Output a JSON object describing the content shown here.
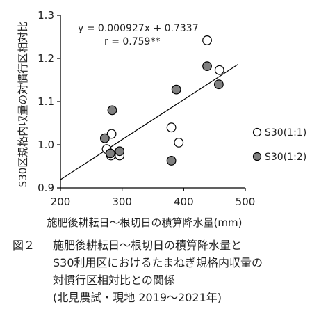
{
  "chart_data": {
    "type": "scatter",
    "xlabel": "施肥後耕耘日～根切日の積算降水量(mm)",
    "ylabel": "S30区規格内収量の対慣行区相対比",
    "xlim": [
      200,
      500
    ],
    "ylim": [
      0.9,
      1.3
    ],
    "xticks": [
      "200",
      "300",
      "400",
      "500"
    ],
    "yticks": [
      "0.9",
      "1.0",
      "1.1",
      "1.2",
      "1.3"
    ],
    "grid": false,
    "legend_position": "right",
    "series": [
      {
        "name": "S30(1:1)",
        "marker": "open-circle",
        "color": "#ffffff",
        "points": [
          [
            438,
            1.242
          ],
          [
            458,
            1.173
          ],
          [
            275,
            0.99
          ],
          [
            283,
            1.025
          ],
          [
            282,
            0.975
          ],
          [
            296,
            0.975
          ],
          [
            380,
            1.04
          ],
          [
            392,
            1.005
          ]
        ]
      },
      {
        "name": "S30(1:2)",
        "marker": "filled-circle",
        "color": "#808080",
        "points": [
          [
            284,
            1.08
          ],
          [
            272,
            1.015
          ],
          [
            281,
            0.98
          ],
          [
            296,
            0.985
          ],
          [
            388,
            1.128
          ],
          [
            438,
            1.182
          ],
          [
            457,
            1.14
          ],
          [
            380,
            0.963
          ]
        ]
      }
    ],
    "regression": {
      "slope": 0.000927,
      "intercept": 0.7337,
      "x_range": [
        200,
        488
      ],
      "equation": "y = 0.000927x + 0.7337",
      "r_text": "r = 0.759**"
    }
  },
  "caption": {
    "figure_label": "図２",
    "lines": [
      "施肥後耕耘日～根切日の積算降水量と",
      "S30利用区におけるたまねぎ規格内収量の",
      "対慣行区相対比との関係",
      "(北見農試・現地 2019～2021年)"
    ]
  }
}
